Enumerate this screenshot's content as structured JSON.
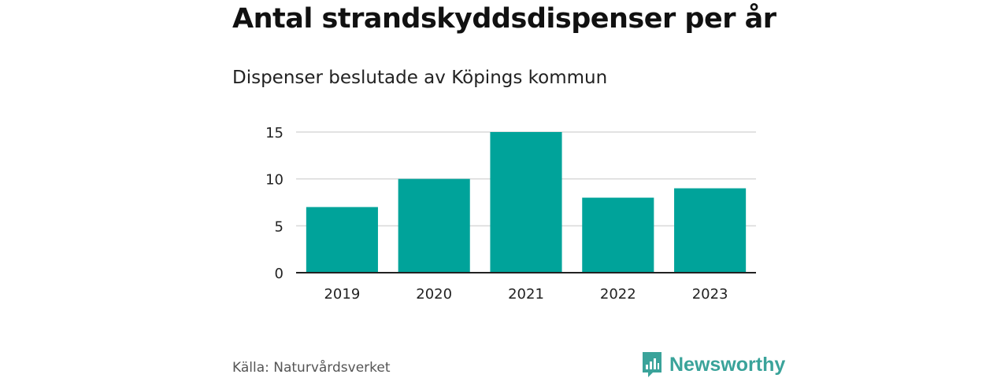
{
  "header": {
    "title": "Antal strandskyddsdispenser per år",
    "subtitle": "Dispenser beslutade av Köpings kommun"
  },
  "footer": {
    "source": "Källa: Naturvårdsverket",
    "brand": "Newsworthy"
  },
  "colors": {
    "bar": "#00a39a",
    "grid": "#d9d9d9",
    "axis": "#222222",
    "brand": "#3aa39a"
  },
  "chart_data": {
    "type": "bar",
    "title": "Antal strandskyddsdispenser per år",
    "subtitle": "Dispenser beslutade av Köpings kommun",
    "categories": [
      "2019",
      "2020",
      "2021",
      "2022",
      "2023"
    ],
    "values": [
      7,
      10,
      15,
      8,
      9
    ],
    "yticks": [
      0,
      5,
      10,
      15
    ],
    "ylim": [
      0,
      15
    ],
    "xlabel": "",
    "ylabel": "",
    "grid": true
  }
}
